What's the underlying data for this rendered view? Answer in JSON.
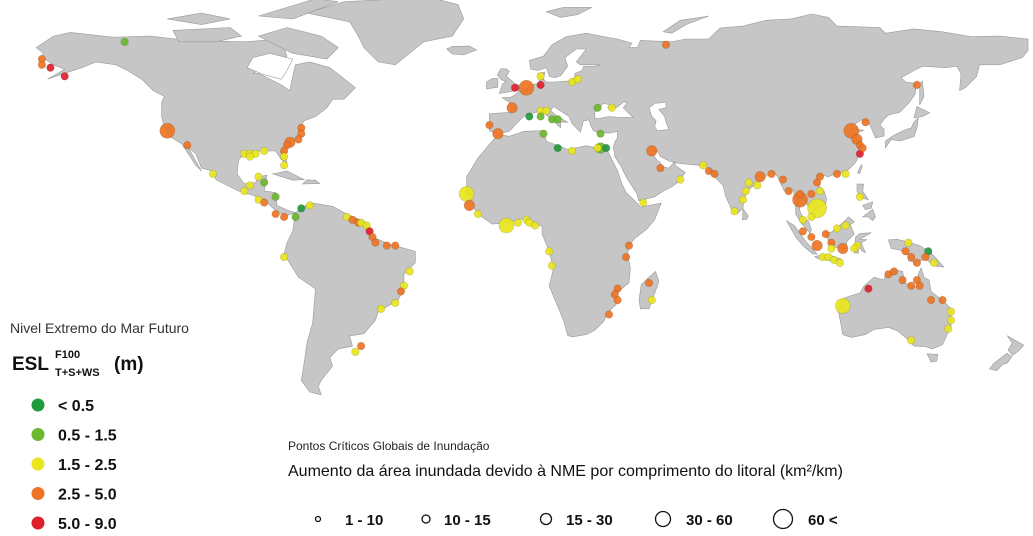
{
  "esl_legend": {
    "title": "Nivel Extremo do Mar Futuro",
    "symbol": "ESL",
    "superscript": "F100",
    "subscript": "T+S+WS",
    "unit": "(m)",
    "classes": [
      {
        "label": "< 0.5",
        "color": "#1f9a3c"
      },
      {
        "label": "0.5 - 1.5",
        "color": "#6cb82e"
      },
      {
        "label": "1.5 - 2.5",
        "color": "#e8e51c"
      },
      {
        "label": "2.5 - 5.0",
        "color": "#ee7424"
      },
      {
        "label": "5.0 - 9.0",
        "color": "#df1f2b"
      }
    ]
  },
  "size_legend": {
    "title": "Pontos Críticos Globais de Inundação",
    "subtitle": "Aumento da área inundada devido à NME por comprimento do litoral (km²/km)",
    "classes": [
      {
        "label": "1 - 10"
      },
      {
        "label": "10 - 15"
      },
      {
        "label": "15 - 30"
      },
      {
        "label": "30 - 60"
      },
      {
        "label": "60 <"
      }
    ]
  },
  "colors": {
    "land": "#c6c6c6",
    "border": "#9a9a9a",
    "water": "#ffffff"
  },
  "hotspots": [
    {
      "lon": -166,
      "lat": 62,
      "esl": 3,
      "area": 1
    },
    {
      "lon": -166,
      "lat": 60,
      "esl": 3,
      "area": 1
    },
    {
      "lon": -163,
      "lat": 59,
      "esl": 4,
      "area": 1
    },
    {
      "lon": -158,
      "lat": 56,
      "esl": 4,
      "area": 1
    },
    {
      "lon": -137,
      "lat": 68,
      "esl": 1,
      "area": 1
    },
    {
      "lon": -122,
      "lat": 37,
      "esl": 3,
      "area": 3
    },
    {
      "lon": -115,
      "lat": 32,
      "esl": 3,
      "area": 1
    },
    {
      "lon": -75,
      "lat": 38,
      "esl": 3,
      "area": 1
    },
    {
      "lon": -75,
      "lat": 36,
      "esl": 3,
      "area": 1
    },
    {
      "lon": -76,
      "lat": 34,
      "esl": 3,
      "area": 1
    },
    {
      "lon": -79,
      "lat": 33,
      "esl": 3,
      "area": 2
    },
    {
      "lon": -80,
      "lat": 32,
      "esl": 3,
      "area": 1
    },
    {
      "lon": -81,
      "lat": 30,
      "esl": 3,
      "area": 1
    },
    {
      "lon": -81,
      "lat": 28,
      "esl": 2,
      "area": 1
    },
    {
      "lon": -81,
      "lat": 25,
      "esl": 2,
      "area": 1
    },
    {
      "lon": -95,
      "lat": 29,
      "esl": 2,
      "area": 1
    },
    {
      "lon": -93,
      "lat": 29,
      "esl": 2,
      "area": 1
    },
    {
      "lon": -91,
      "lat": 29,
      "esl": 2,
      "area": 1
    },
    {
      "lon": -88,
      "lat": 30,
      "esl": 2,
      "area": 1
    },
    {
      "lon": -93,
      "lat": 28,
      "esl": 2,
      "area": 1
    },
    {
      "lon": -106,
      "lat": 22,
      "esl": 2,
      "area": 1
    },
    {
      "lon": -90,
      "lat": 21,
      "esl": 2,
      "area": 1
    },
    {
      "lon": -93,
      "lat": 18,
      "esl": 2,
      "area": 1
    },
    {
      "lon": -88,
      "lat": 19,
      "esl": 1,
      "area": 1
    },
    {
      "lon": -95,
      "lat": 16,
      "esl": 2,
      "area": 1
    },
    {
      "lon": -90,
      "lat": 13,
      "esl": 2,
      "area": 1
    },
    {
      "lon": -88,
      "lat": 12,
      "esl": 3,
      "area": 1
    },
    {
      "lon": -84,
      "lat": 14,
      "esl": 1,
      "area": 1
    },
    {
      "lon": -84,
      "lat": 8,
      "esl": 3,
      "area": 1
    },
    {
      "lon": -81,
      "lat": 7,
      "esl": 3,
      "area": 1
    },
    {
      "lon": -77,
      "lat": 7,
      "esl": 1,
      "area": 1
    },
    {
      "lon": -75,
      "lat": 10,
      "esl": 0,
      "area": 1
    },
    {
      "lon": -72,
      "lat": 11,
      "esl": 2,
      "area": 1
    },
    {
      "lon": -59,
      "lat": 7,
      "esl": 2,
      "area": 1
    },
    {
      "lon": -57,
      "lat": 6,
      "esl": 3,
      "area": 1
    },
    {
      "lon": -55,
      "lat": 5,
      "esl": 3,
      "area": 1
    },
    {
      "lon": -54,
      "lat": 5,
      "esl": 2,
      "area": 1
    },
    {
      "lon": -52,
      "lat": 4,
      "esl": 2,
      "area": 1
    },
    {
      "lon": -51,
      "lat": 2,
      "esl": 4,
      "area": 1
    },
    {
      "lon": -50,
      "lat": 0,
      "esl": 3,
      "area": 1
    },
    {
      "lon": -49,
      "lat": -2,
      "esl": 3,
      "area": 1
    },
    {
      "lon": -45,
      "lat": -3,
      "esl": 3,
      "area": 1
    },
    {
      "lon": -42,
      "lat": -3,
      "esl": 3,
      "area": 1
    },
    {
      "lon": -81,
      "lat": -7,
      "esl": 2,
      "area": 1
    },
    {
      "lon": -37,
      "lat": -12,
      "esl": 2,
      "area": 1
    },
    {
      "lon": -39,
      "lat": -17,
      "esl": 2,
      "area": 1
    },
    {
      "lon": -40,
      "lat": -19,
      "esl": 3,
      "area": 1
    },
    {
      "lon": -42,
      "lat": -23,
      "esl": 2,
      "area": 1
    },
    {
      "lon": -47,
      "lat": -25,
      "esl": 2,
      "area": 1
    },
    {
      "lon": -54,
      "lat": -38,
      "esl": 3,
      "area": 1
    },
    {
      "lon": -56,
      "lat": -40,
      "esl": 2,
      "area": 1
    },
    {
      "lon": 0,
      "lat": 52,
      "esl": 4,
      "area": 1
    },
    {
      "lon": 4,
      "lat": 52,
      "esl": 3,
      "area": 3
    },
    {
      "lon": 9,
      "lat": 53,
      "esl": 4,
      "area": 1
    },
    {
      "lon": 9,
      "lat": 56,
      "esl": 2,
      "area": 1
    },
    {
      "lon": 20,
      "lat": 54,
      "esl": 2,
      "area": 1
    },
    {
      "lon": 22,
      "lat": 55,
      "esl": 2,
      "area": 1
    },
    {
      "lon": -1,
      "lat": 45,
      "esl": 3,
      "area": 2
    },
    {
      "lon": -9,
      "lat": 39,
      "esl": 3,
      "area": 1
    },
    {
      "lon": -6,
      "lat": 36,
      "esl": 3,
      "area": 2
    },
    {
      "lon": 5,
      "lat": 42,
      "esl": 0,
      "area": 1
    },
    {
      "lon": 9,
      "lat": 44,
      "esl": 2,
      "area": 1
    },
    {
      "lon": 11,
      "lat": 44,
      "esl": 2,
      "area": 1
    },
    {
      "lon": 9,
      "lat": 42,
      "esl": 1,
      "area": 1
    },
    {
      "lon": 13,
      "lat": 41,
      "esl": 1,
      "area": 1
    },
    {
      "lon": 15,
      "lat": 41,
      "esl": 1,
      "area": 1
    },
    {
      "lon": 29,
      "lat": 45,
      "esl": 1,
      "area": 1
    },
    {
      "lon": 34,
      "lat": 45,
      "esl": 2,
      "area": 1
    },
    {
      "lon": 10,
      "lat": 36,
      "esl": 1,
      "area": 1
    },
    {
      "lon": 15,
      "lat": 31,
      "esl": 0,
      "area": 1
    },
    {
      "lon": 20,
      "lat": 30,
      "esl": 2,
      "area": 1
    },
    {
      "lon": 30,
      "lat": 36,
      "esl": 1,
      "area": 1
    },
    {
      "lon": 30,
      "lat": 31,
      "esl": 1,
      "area": 2
    },
    {
      "lon": 32,
      "lat": 31,
      "esl": 0,
      "area": 1
    },
    {
      "lon": 29,
      "lat": 31,
      "esl": 2,
      "area": 1
    },
    {
      "lon": 48,
      "lat": 30,
      "esl": 3,
      "area": 2
    },
    {
      "lon": 51,
      "lat": 24,
      "esl": 3,
      "area": 1
    },
    {
      "lon": 58,
      "lat": 20,
      "esl": 2,
      "area": 1
    },
    {
      "lon": 53,
      "lat": 67,
      "esl": 3,
      "area": 1
    },
    {
      "lon": 66,
      "lat": 25,
      "esl": 2,
      "area": 1
    },
    {
      "lon": 68,
      "lat": 23,
      "esl": 3,
      "area": 1
    },
    {
      "lon": 70,
      "lat": 22,
      "esl": 3,
      "area": 1
    },
    {
      "lon": 45,
      "lat": 12,
      "esl": 2,
      "area": 1
    },
    {
      "lon": -17,
      "lat": 15,
      "esl": 2,
      "area": 3
    },
    {
      "lon": -16,
      "lat": 11,
      "esl": 3,
      "area": 2
    },
    {
      "lon": -13,
      "lat": 8,
      "esl": 2,
      "area": 1
    },
    {
      "lon": -3,
      "lat": 4,
      "esl": 2,
      "area": 3
    },
    {
      "lon": 1,
      "lat": 5,
      "esl": 2,
      "area": 1
    },
    {
      "lon": 4,
      "lat": 6,
      "esl": 2,
      "area": 1
    },
    {
      "lon": 5,
      "lat": 5,
      "esl": 2,
      "area": 1
    },
    {
      "lon": 7,
      "lat": 4,
      "esl": 2,
      "area": 1
    },
    {
      "lon": 12,
      "lat": -5,
      "esl": 2,
      "area": 1
    },
    {
      "lon": 13,
      "lat": -10,
      "esl": 2,
      "area": 1
    },
    {
      "lon": 40,
      "lat": -3,
      "esl": 3,
      "area": 1
    },
    {
      "lon": 39,
      "lat": -7,
      "esl": 3,
      "area": 1
    },
    {
      "lon": 47,
      "lat": -16,
      "esl": 3,
      "area": 1
    },
    {
      "lon": 48,
      "lat": -22,
      "esl": 2,
      "area": 1
    },
    {
      "lon": 36,
      "lat": -18,
      "esl": 3,
      "area": 1
    },
    {
      "lon": 35,
      "lat": -20,
      "esl": 3,
      "area": 1
    },
    {
      "lon": 36,
      "lat": -22,
      "esl": 3,
      "area": 1
    },
    {
      "lon": 33,
      "lat": -27,
      "esl": 3,
      "area": 1
    },
    {
      "lon": 82,
      "lat": 19,
      "esl": 2,
      "area": 1
    },
    {
      "lon": 81,
      "lat": 16,
      "esl": 2,
      "area": 1
    },
    {
      "lon": 80,
      "lat": 13,
      "esl": 2,
      "area": 1
    },
    {
      "lon": 77,
      "lat": 9,
      "esl": 2,
      "area": 1
    },
    {
      "lon": 86,
      "lat": 21,
      "esl": 3,
      "area": 2
    },
    {
      "lon": 90,
      "lat": 22,
      "esl": 3,
      "area": 1
    },
    {
      "lon": 94,
      "lat": 20,
      "esl": 3,
      "area": 1
    },
    {
      "lon": 85,
      "lat": 18,
      "esl": 2,
      "area": 1
    },
    {
      "lon": 96,
      "lat": 16,
      "esl": 3,
      "area": 1
    },
    {
      "lon": 100,
      "lat": 15,
      "esl": 3,
      "area": 1
    },
    {
      "lon": 100,
      "lat": 13,
      "esl": 3,
      "area": 3
    },
    {
      "lon": 106,
      "lat": 10,
      "esl": 2,
      "area": 4
    },
    {
      "lon": 104,
      "lat": 15,
      "esl": 3,
      "area": 1
    },
    {
      "lon": 106,
      "lat": 19,
      "esl": 3,
      "area": 1
    },
    {
      "lon": 107,
      "lat": 21,
      "esl": 3,
      "area": 1
    },
    {
      "lon": 107,
      "lat": 16,
      "esl": 2,
      "area": 1
    },
    {
      "lon": 118,
      "lat": 37,
      "esl": 3,
      "area": 3
    },
    {
      "lon": 120,
      "lat": 34,
      "esl": 3,
      "area": 2
    },
    {
      "lon": 121,
      "lat": 32,
      "esl": 3,
      "area": 1
    },
    {
      "lon": 121,
      "lat": 29,
      "esl": 4,
      "area": 1
    },
    {
      "lon": 122,
      "lat": 31,
      "esl": 3,
      "area": 1
    },
    {
      "lon": 123,
      "lat": 40,
      "esl": 3,
      "area": 1
    },
    {
      "lon": 113,
      "lat": 22,
      "esl": 3,
      "area": 1
    },
    {
      "lon": 116,
      "lat": 22,
      "esl": 2,
      "area": 1
    },
    {
      "lon": 141,
      "lat": 53,
      "esl": 3,
      "area": 1
    },
    {
      "lon": 121,
      "lat": 14,
      "esl": 2,
      "area": 1
    },
    {
      "lon": 101,
      "lat": 6,
      "esl": 2,
      "area": 1
    },
    {
      "lon": 104,
      "lat": 7,
      "esl": 2,
      "area": 1
    },
    {
      "lon": 101,
      "lat": 2,
      "esl": 3,
      "area": 1
    },
    {
      "lon": 104,
      "lat": 0,
      "esl": 3,
      "area": 1
    },
    {
      "lon": 106,
      "lat": -3,
      "esl": 3,
      "area": 2
    },
    {
      "lon": 109,
      "lat": 1,
      "esl": 3,
      "area": 1
    },
    {
      "lon": 111,
      "lat": -2,
      "esl": 3,
      "area": 1
    },
    {
      "lon": 115,
      "lat": -4,
      "esl": 3,
      "area": 2
    },
    {
      "lon": 111,
      "lat": -4,
      "esl": 2,
      "area": 1
    },
    {
      "lon": 113,
      "lat": 3,
      "esl": 2,
      "area": 1
    },
    {
      "lon": 116,
      "lat": 4,
      "esl": 2,
      "area": 1
    },
    {
      "lon": 120,
      "lat": -3,
      "esl": 2,
      "area": 1
    },
    {
      "lon": 119,
      "lat": -4,
      "esl": 2,
      "area": 1
    },
    {
      "lon": 108,
      "lat": -7,
      "esl": 2,
      "area": 1
    },
    {
      "lon": 110,
      "lat": -7,
      "esl": 2,
      "area": 1
    },
    {
      "lon": 112,
      "lat": -8,
      "esl": 2,
      "area": 1
    },
    {
      "lon": 114,
      "lat": -9,
      "esl": 2,
      "area": 1
    },
    {
      "lon": 138,
      "lat": -2,
      "esl": 2,
      "area": 1
    },
    {
      "lon": 137,
      "lat": -5,
      "esl": 3,
      "area": 1
    },
    {
      "lon": 139,
      "lat": -7,
      "esl": 3,
      "area": 1
    },
    {
      "lon": 141,
      "lat": -9,
      "esl": 3,
      "area": 1
    },
    {
      "lon": 145,
      "lat": -5,
      "esl": 0,
      "area": 1
    },
    {
      "lon": 147,
      "lat": -9,
      "esl": 2,
      "area": 1
    },
    {
      "lon": 144,
      "lat": -7,
      "esl": 3,
      "area": 1
    },
    {
      "lon": 131,
      "lat": -13,
      "esl": 3,
      "area": 1
    },
    {
      "lon": 133,
      "lat": -12,
      "esl": 3,
      "area": 1
    },
    {
      "lon": 136,
      "lat": -15,
      "esl": 3,
      "area": 1
    },
    {
      "lon": 141,
      "lat": -15,
      "esl": 3,
      "area": 1
    },
    {
      "lon": 142,
      "lat": -17,
      "esl": 3,
      "area": 1
    },
    {
      "lon": 139,
      "lat": -17,
      "esl": 3,
      "area": 1
    },
    {
      "lon": 124,
      "lat": -18,
      "esl": 4,
      "area": 1
    },
    {
      "lon": 146,
      "lat": -22,
      "esl": 3,
      "area": 1
    },
    {
      "lon": 150,
      "lat": -22,
      "esl": 3,
      "area": 1
    },
    {
      "lon": 115,
      "lat": -24,
      "esl": 2,
      "area": 3
    },
    {
      "lon": 153,
      "lat": -26,
      "esl": 2,
      "area": 1
    },
    {
      "lon": 153,
      "lat": -29,
      "esl": 2,
      "area": 1
    },
    {
      "lon": 152,
      "lat": -32,
      "esl": 2,
      "area": 1
    },
    {
      "lon": 139,
      "lat": -36,
      "esl": 2,
      "area": 1
    }
  ]
}
